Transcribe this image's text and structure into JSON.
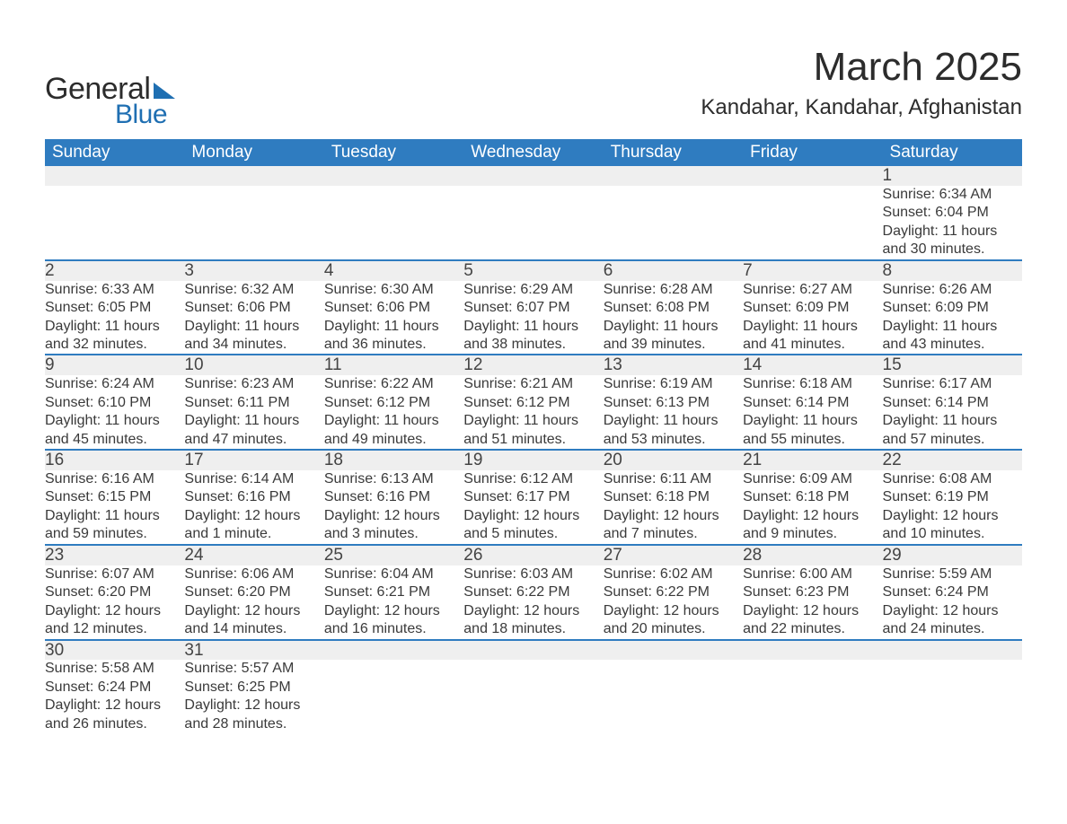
{
  "brand": {
    "general": "General",
    "blue": "Blue"
  },
  "title": "March 2025",
  "location": "Kandahar, Kandahar, Afghanistan",
  "colors": {
    "header_bg": "#2f7cc0",
    "header_text": "#ffffff",
    "daynum_bg": "#efefef",
    "row_border": "#2f7cc0",
    "body_text": "#3a3a3a",
    "logo_accent": "#1f6fb2",
    "page_bg": "#ffffff"
  },
  "typography": {
    "title_fontsize": 44,
    "location_fontsize": 24,
    "weekday_fontsize": 19,
    "daynum_fontsize": 19,
    "cell_fontsize": 16
  },
  "layout": {
    "columns": 7,
    "rows": 6
  },
  "weekdays": [
    "Sunday",
    "Monday",
    "Tuesday",
    "Wednesday",
    "Thursday",
    "Friday",
    "Saturday"
  ],
  "weeks": [
    [
      null,
      null,
      null,
      null,
      null,
      null,
      {
        "day": "1",
        "lines": [
          "Sunrise: 6:34 AM",
          "Sunset: 6:04 PM",
          "Daylight: 11 hours",
          "and 30 minutes."
        ]
      }
    ],
    [
      {
        "day": "2",
        "lines": [
          "Sunrise: 6:33 AM",
          "Sunset: 6:05 PM",
          "Daylight: 11 hours",
          "and 32 minutes."
        ]
      },
      {
        "day": "3",
        "lines": [
          "Sunrise: 6:32 AM",
          "Sunset: 6:06 PM",
          "Daylight: 11 hours",
          "and 34 minutes."
        ]
      },
      {
        "day": "4",
        "lines": [
          "Sunrise: 6:30 AM",
          "Sunset: 6:06 PM",
          "Daylight: 11 hours",
          "and 36 minutes."
        ]
      },
      {
        "day": "5",
        "lines": [
          "Sunrise: 6:29 AM",
          "Sunset: 6:07 PM",
          "Daylight: 11 hours",
          "and 38 minutes."
        ]
      },
      {
        "day": "6",
        "lines": [
          "Sunrise: 6:28 AM",
          "Sunset: 6:08 PM",
          "Daylight: 11 hours",
          "and 39 minutes."
        ]
      },
      {
        "day": "7",
        "lines": [
          "Sunrise: 6:27 AM",
          "Sunset: 6:09 PM",
          "Daylight: 11 hours",
          "and 41 minutes."
        ]
      },
      {
        "day": "8",
        "lines": [
          "Sunrise: 6:26 AM",
          "Sunset: 6:09 PM",
          "Daylight: 11 hours",
          "and 43 minutes."
        ]
      }
    ],
    [
      {
        "day": "9",
        "lines": [
          "Sunrise: 6:24 AM",
          "Sunset: 6:10 PM",
          "Daylight: 11 hours",
          "and 45 minutes."
        ]
      },
      {
        "day": "10",
        "lines": [
          "Sunrise: 6:23 AM",
          "Sunset: 6:11 PM",
          "Daylight: 11 hours",
          "and 47 minutes."
        ]
      },
      {
        "day": "11",
        "lines": [
          "Sunrise: 6:22 AM",
          "Sunset: 6:12 PM",
          "Daylight: 11 hours",
          "and 49 minutes."
        ]
      },
      {
        "day": "12",
        "lines": [
          "Sunrise: 6:21 AM",
          "Sunset: 6:12 PM",
          "Daylight: 11 hours",
          "and 51 minutes."
        ]
      },
      {
        "day": "13",
        "lines": [
          "Sunrise: 6:19 AM",
          "Sunset: 6:13 PM",
          "Daylight: 11 hours",
          "and 53 minutes."
        ]
      },
      {
        "day": "14",
        "lines": [
          "Sunrise: 6:18 AM",
          "Sunset: 6:14 PM",
          "Daylight: 11 hours",
          "and 55 minutes."
        ]
      },
      {
        "day": "15",
        "lines": [
          "Sunrise: 6:17 AM",
          "Sunset: 6:14 PM",
          "Daylight: 11 hours",
          "and 57 minutes."
        ]
      }
    ],
    [
      {
        "day": "16",
        "lines": [
          "Sunrise: 6:16 AM",
          "Sunset: 6:15 PM",
          "Daylight: 11 hours",
          "and 59 minutes."
        ]
      },
      {
        "day": "17",
        "lines": [
          "Sunrise: 6:14 AM",
          "Sunset: 6:16 PM",
          "Daylight: 12 hours",
          "and 1 minute."
        ]
      },
      {
        "day": "18",
        "lines": [
          "Sunrise: 6:13 AM",
          "Sunset: 6:16 PM",
          "Daylight: 12 hours",
          "and 3 minutes."
        ]
      },
      {
        "day": "19",
        "lines": [
          "Sunrise: 6:12 AM",
          "Sunset: 6:17 PM",
          "Daylight: 12 hours",
          "and 5 minutes."
        ]
      },
      {
        "day": "20",
        "lines": [
          "Sunrise: 6:11 AM",
          "Sunset: 6:18 PM",
          "Daylight: 12 hours",
          "and 7 minutes."
        ]
      },
      {
        "day": "21",
        "lines": [
          "Sunrise: 6:09 AM",
          "Sunset: 6:18 PM",
          "Daylight: 12 hours",
          "and 9 minutes."
        ]
      },
      {
        "day": "22",
        "lines": [
          "Sunrise: 6:08 AM",
          "Sunset: 6:19 PM",
          "Daylight: 12 hours",
          "and 10 minutes."
        ]
      }
    ],
    [
      {
        "day": "23",
        "lines": [
          "Sunrise: 6:07 AM",
          "Sunset: 6:20 PM",
          "Daylight: 12 hours",
          "and 12 minutes."
        ]
      },
      {
        "day": "24",
        "lines": [
          "Sunrise: 6:06 AM",
          "Sunset: 6:20 PM",
          "Daylight: 12 hours",
          "and 14 minutes."
        ]
      },
      {
        "day": "25",
        "lines": [
          "Sunrise: 6:04 AM",
          "Sunset: 6:21 PM",
          "Daylight: 12 hours",
          "and 16 minutes."
        ]
      },
      {
        "day": "26",
        "lines": [
          "Sunrise: 6:03 AM",
          "Sunset: 6:22 PM",
          "Daylight: 12 hours",
          "and 18 minutes."
        ]
      },
      {
        "day": "27",
        "lines": [
          "Sunrise: 6:02 AM",
          "Sunset: 6:22 PM",
          "Daylight: 12 hours",
          "and 20 minutes."
        ]
      },
      {
        "day": "28",
        "lines": [
          "Sunrise: 6:00 AM",
          "Sunset: 6:23 PM",
          "Daylight: 12 hours",
          "and 22 minutes."
        ]
      },
      {
        "day": "29",
        "lines": [
          "Sunrise: 5:59 AM",
          "Sunset: 6:24 PM",
          "Daylight: 12 hours",
          "and 24 minutes."
        ]
      }
    ],
    [
      {
        "day": "30",
        "lines": [
          "Sunrise: 5:58 AM",
          "Sunset: 6:24 PM",
          "Daylight: 12 hours",
          "and 26 minutes."
        ]
      },
      {
        "day": "31",
        "lines": [
          "Sunrise: 5:57 AM",
          "Sunset: 6:25 PM",
          "Daylight: 12 hours",
          "and 28 minutes."
        ]
      },
      null,
      null,
      null,
      null,
      null
    ]
  ]
}
